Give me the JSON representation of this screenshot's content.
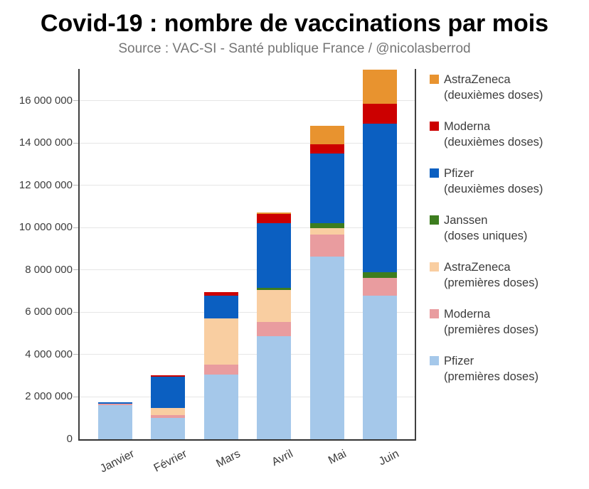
{
  "chart_data": {
    "type": "bar",
    "stacked": true,
    "title": "Covid-19 : nombre de vaccinations par mois",
    "subtitle": "Source : VAC-SI - Santé publique France / @nicolasberrod",
    "xlabel": "",
    "ylabel": "",
    "grid": true,
    "legend_position": "right",
    "ylim": [
      0,
      17500000
    ],
    "categories": [
      "Janvier",
      "Février",
      "Mars",
      "Avril",
      "Mai",
      "Juin"
    ],
    "yticks": {
      "values": [
        0,
        2000000,
        4000000,
        6000000,
        8000000,
        10000000,
        12000000,
        14000000,
        16000000
      ],
      "labels": [
        "0",
        "2 000 000",
        "4 000 000",
        "6 000 000",
        "8 000 000",
        "10 000 000",
        "12 000 000",
        "14 000 000",
        "16 000 000"
      ]
    },
    "series": [
      {
        "name": "Pfizer",
        "sub": "(premières doses)",
        "color": "#A5C8EA",
        "values": [
          1600000,
          1010000,
          3070000,
          4880000,
          8620000,
          6770000
        ]
      },
      {
        "name": "Moderna",
        "sub": "(premières doses)",
        "color": "#E99C9F",
        "values": [
          80000,
          130000,
          450000,
          650000,
          1070000,
          840000
        ]
      },
      {
        "name": "AstraZeneca",
        "sub": "(premières doses)",
        "color": "#F9CEA1",
        "values": [
          0,
          350000,
          2180000,
          1530000,
          300000,
          0
        ]
      },
      {
        "name": "Janssen",
        "sub": "(doses uniques)",
        "color": "#3D7D1F",
        "values": [
          0,
          0,
          0,
          90000,
          230000,
          300000
        ]
      },
      {
        "name": "Pfizer",
        "sub": "(deuxièmes doses)",
        "color": "#0B5FC1",
        "values": [
          70000,
          1480000,
          1100000,
          3050000,
          3280000,
          7020000
        ]
      },
      {
        "name": "Moderna",
        "sub": "(deuxièmes doses)",
        "color": "#CC0000",
        "values": [
          0,
          70000,
          160000,
          450000,
          450000,
          920000
        ]
      },
      {
        "name": "AstraZeneca",
        "sub": "(deuxièmes doses)",
        "color": "#E8932F",
        "values": [
          0,
          0,
          0,
          70000,
          860000,
          1630000
        ]
      }
    ],
    "legend_note": "legend lists series top-of-stack first"
  }
}
